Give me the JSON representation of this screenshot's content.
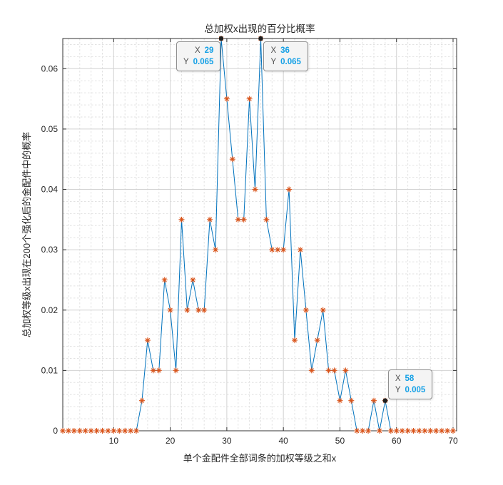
{
  "title": "总加权x出现的百分比概率",
  "xlabel": "单个金配件全部词条的加权等级之和x",
  "ylabel": "总加权等级x出现在200个强化后的金配件中的概率",
  "chart_data": {
    "type": "line",
    "title": "总加权x出现的百分比概率",
    "xlabel": "单个金配件全部词条的加权等级之和x",
    "ylabel": "总加权等级x出现在200个强化后的金配件中的概率",
    "x": [
      1,
      2,
      3,
      4,
      5,
      6,
      7,
      8,
      9,
      10,
      11,
      12,
      13,
      14,
      15,
      16,
      17,
      18,
      19,
      20,
      21,
      22,
      23,
      24,
      25,
      26,
      27,
      28,
      29,
      30,
      31,
      32,
      33,
      34,
      35,
      36,
      37,
      38,
      39,
      40,
      41,
      42,
      43,
      44,
      45,
      46,
      47,
      48,
      49,
      50,
      51,
      52,
      53,
      54,
      55,
      56,
      57,
      58,
      59,
      60,
      61,
      62,
      63,
      64,
      65,
      66,
      67,
      68,
      69,
      70
    ],
    "y": [
      0,
      0,
      0,
      0,
      0,
      0,
      0,
      0,
      0,
      0,
      0,
      0,
      0,
      0,
      0.005,
      0.015,
      0.01,
      0.01,
      0.025,
      0.02,
      0.01,
      0.035,
      0.02,
      0.025,
      0.02,
      0.02,
      0.035,
      0.03,
      0.065,
      0.055,
      0.045,
      0.035,
      0.035,
      0.055,
      0.04,
      0.065,
      0.035,
      0.03,
      0.03,
      0.03,
      0.04,
      0.015,
      0.03,
      0.02,
      0.01,
      0.015,
      0.02,
      0.01,
      0.01,
      0.005,
      0.01,
      0.005,
      0,
      0,
      0,
      0.005,
      0,
      0.005,
      0,
      0,
      0,
      0,
      0,
      0,
      0,
      0,
      0,
      0,
      0,
      0
    ],
    "xlim": [
      1,
      70.63
    ],
    "ylim": [
      0,
      0.065
    ],
    "xticks": [
      10,
      20,
      30,
      40,
      50,
      60,
      70
    ],
    "xtick_labels": [
      "10",
      "20",
      "30",
      "40",
      "50",
      "60",
      "70"
    ],
    "yticks": [
      0,
      0.01,
      0.02,
      0.03,
      0.04,
      0.05,
      0.06
    ],
    "ytick_labels": [
      "0",
      "0.01",
      "0.02",
      "0.03",
      "0.04",
      "0.05",
      "0.06"
    ],
    "x_minor_step": 2,
    "y_minor_step": 0.002,
    "grid": "on",
    "minor_grid": "on",
    "legend_position": "none",
    "marker": "asterisk",
    "line_color": "#0072BD",
    "marker_color": "#D95319"
  },
  "datatips": [
    {
      "label_x": "X",
      "label_y": "Y",
      "value_x": "29",
      "value_y": "0.065",
      "point_x": 29,
      "point_y": 0.065,
      "placement": "below-left",
      "align": "right"
    },
    {
      "label_x": "X",
      "label_y": "Y",
      "value_x": "36",
      "value_y": "0.065",
      "point_x": 36,
      "point_y": 0.065,
      "placement": "below-right",
      "align": "left"
    },
    {
      "label_x": "X",
      "label_y": "Y",
      "value_x": "58",
      "value_y": "0.005",
      "point_x": 58,
      "point_y": 0.005,
      "placement": "above-right",
      "align": "left"
    }
  ],
  "colors": {
    "line": "#0072BD",
    "marker": "#D95319",
    "grid_major": "#d2d2d2",
    "grid_minor": "#e2e2e2",
    "axis": "#333333",
    "text": "#262626",
    "datatip_value": "#14a0e6",
    "datatip_label": "#4d4d4d",
    "anchor_dot": "#1f1f1f"
  }
}
